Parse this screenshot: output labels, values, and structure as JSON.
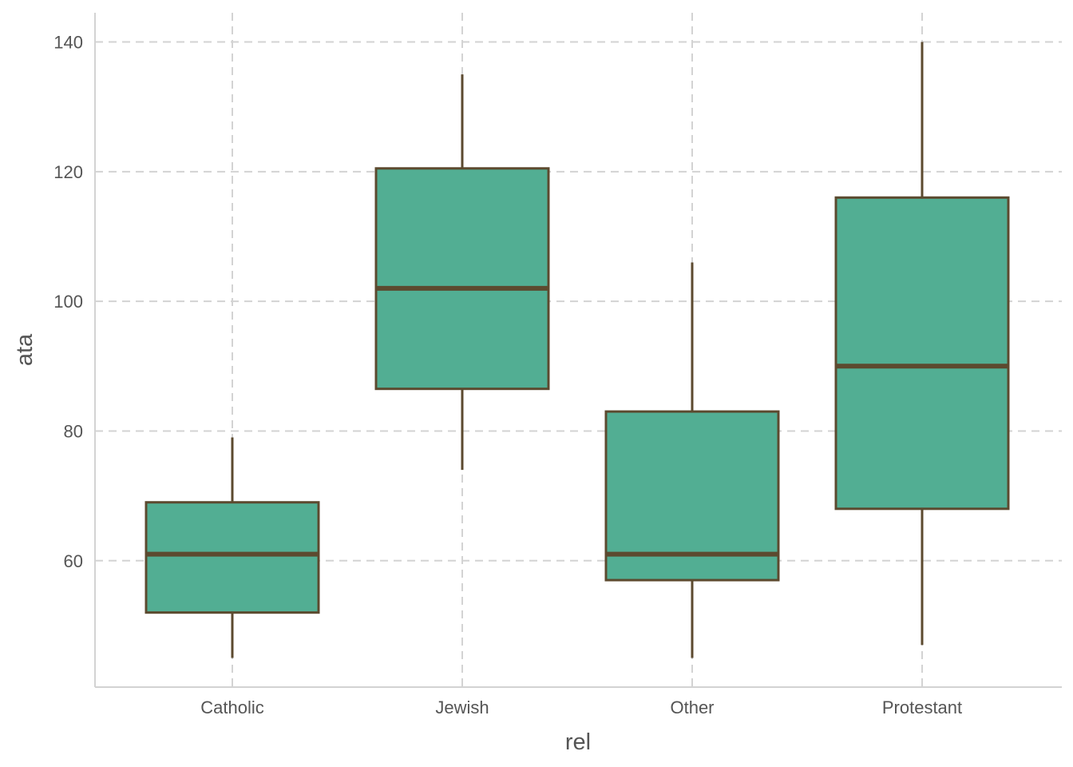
{
  "chart_data": {
    "type": "box",
    "xlabel": "rel",
    "ylabel": "ata",
    "ylim": [
      40.5,
      144.5
    ],
    "yticks": [
      60,
      80,
      100,
      120,
      140
    ],
    "categories": [
      "Catholic",
      "Jewish",
      "Other",
      "Protestant"
    ],
    "boxes": [
      {
        "category": "Catholic",
        "whisker_low": 45,
        "q1": 52,
        "median": 61,
        "q3": 69,
        "whisker_high": 79
      },
      {
        "category": "Jewish",
        "whisker_low": 74,
        "q1": 86.5,
        "median": 102,
        "q3": 120.5,
        "whisker_high": 135
      },
      {
        "category": "Other",
        "whisker_low": 45,
        "q1": 57,
        "median": 61,
        "q3": 83,
        "whisker_high": 106
      },
      {
        "category": "Protestant",
        "whisker_low": 47,
        "q1": 68,
        "median": 90,
        "q3": 116,
        "whisker_high": 140
      }
    ],
    "grid": true,
    "legend": "none",
    "colors": {
      "box_fill": "#52ae93",
      "box_outline": "#5c4a2f",
      "grid": "#d3d3d3",
      "axis": "#d3d3d3",
      "text": "#555555"
    }
  }
}
